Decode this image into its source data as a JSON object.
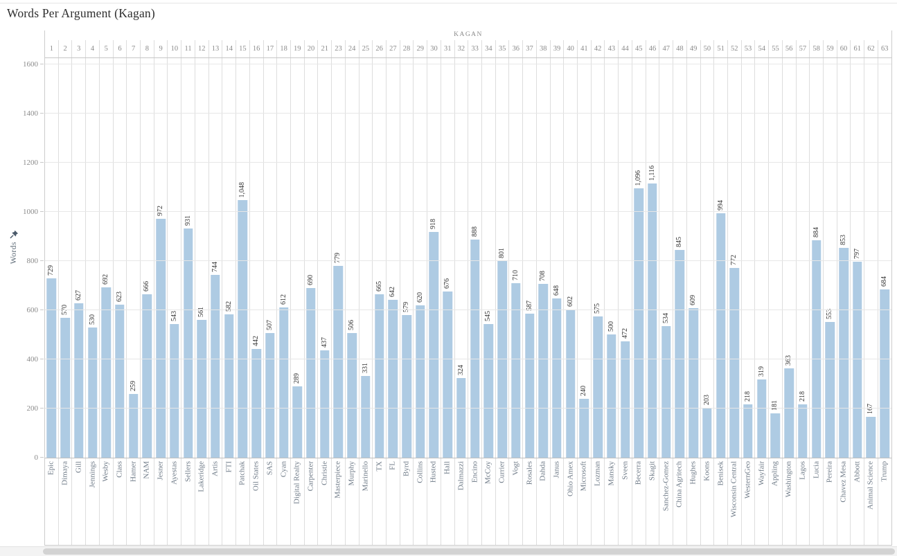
{
  "header": {
    "title": "Words Per Argument (Kagan)"
  },
  "colors": {
    "bar": "#aecbe3",
    "value_label": "#333333",
    "category_label": "#6e7a87",
    "axis_text": "#8a8a8a",
    "gridline": "#e7e7e7",
    "column_divider": "#dddddd",
    "pin_icon": "#4a5a6a"
  },
  "icons": {
    "pin": "pushpin-icon"
  },
  "chart_data": {
    "type": "bar",
    "title": "Words Per Argument (Kagan)",
    "group_label": "KAGAN",
    "ylabel": "Words",
    "ylim": [
      0,
      1600
    ],
    "yticks": [
      0,
      200,
      400,
      600,
      800,
      1000,
      1200,
      1400,
      1600
    ],
    "grid": "horizontal",
    "legend": "none",
    "bar_orientation": "vertical",
    "value_labels": "rotated-90-above-bars",
    "category_labels": "rotated-90-below-axis",
    "column_numbers_skip": [
      22
    ],
    "columns": [
      {
        "n": 1,
        "label": "Epic",
        "value": 729
      },
      {
        "n": 2,
        "label": "Dimaya",
        "value": 570
      },
      {
        "n": 3,
        "label": "Gill",
        "value": 627
      },
      {
        "n": 4,
        "label": "Jennings",
        "value": 530
      },
      {
        "n": 5,
        "label": "Wesby",
        "value": 692
      },
      {
        "n": 6,
        "label": "Class",
        "value": 623
      },
      {
        "n": 7,
        "label": "Hamer",
        "value": 259
      },
      {
        "n": 8,
        "label": "NAM",
        "value": 666
      },
      {
        "n": 9,
        "label": "Jesner",
        "value": 972
      },
      {
        "n": 10,
        "label": "Ayestas",
        "value": 543
      },
      {
        "n": 11,
        "label": "Sellers",
        "value": 931
      },
      {
        "n": 12,
        "label": "Lakeridge",
        "value": 561
      },
      {
        "n": 13,
        "label": "Artis",
        "value": 744
      },
      {
        "n": 14,
        "label": "FTI",
        "value": 582
      },
      {
        "n": 15,
        "label": "Patchak",
        "value": 1048
      },
      {
        "n": 16,
        "label": "Oil States",
        "value": 442
      },
      {
        "n": 17,
        "label": "SAS",
        "value": 507
      },
      {
        "n": 18,
        "label": "Cyan",
        "value": 612
      },
      {
        "n": 19,
        "label": "Digital Realty",
        "value": 289
      },
      {
        "n": 20,
        "label": "Carpenter",
        "value": 690
      },
      {
        "n": 21,
        "label": "Christie",
        "value": 437
      },
      {
        "n": 23,
        "label": "Masterpiece",
        "value": 779
      },
      {
        "n": 24,
        "label": "Murphy",
        "value": 506
      },
      {
        "n": 25,
        "label": "Marinello",
        "value": 331
      },
      {
        "n": 26,
        "label": "TX",
        "value": 665
      },
      {
        "n": 27,
        "label": "FL",
        "value": 642
      },
      {
        "n": 28,
        "label": "Byrd",
        "value": 579
      },
      {
        "n": 29,
        "label": "Collins",
        "value": 620
      },
      {
        "n": 30,
        "label": "Husted",
        "value": 918
      },
      {
        "n": 31,
        "label": "Hall",
        "value": 676
      },
      {
        "n": 32,
        "label": "Dalmazzi",
        "value": 324
      },
      {
        "n": 33,
        "label": "Encino",
        "value": 888
      },
      {
        "n": 34,
        "label": "McCoy",
        "value": 545
      },
      {
        "n": 35,
        "label": "Currier",
        "value": 801
      },
      {
        "n": 36,
        "label": "Vogt",
        "value": 710
      },
      {
        "n": 37,
        "label": "Rosales",
        "value": 587
      },
      {
        "n": 38,
        "label": "Dahda",
        "value": 708
      },
      {
        "n": 39,
        "label": "Janus",
        "value": 648
      },
      {
        "n": 40,
        "label": "Ohio Amex",
        "value": 602
      },
      {
        "n": 41,
        "label": "Microsoft",
        "value": 240
      },
      {
        "n": 42,
        "label": "Lozman",
        "value": 575
      },
      {
        "n": 43,
        "label": "Mansky",
        "value": 500
      },
      {
        "n": 44,
        "label": "Sveen",
        "value": 472
      },
      {
        "n": 45,
        "label": "Becerra",
        "value": 1096
      },
      {
        "n": 46,
        "label": "Skagit",
        "value": 1116
      },
      {
        "n": 47,
        "label": "Sanchez-Gomez",
        "value": 534
      },
      {
        "n": 48,
        "label": "China Agritech",
        "value": 845
      },
      {
        "n": 49,
        "label": "Hughes",
        "value": 609
      },
      {
        "n": 50,
        "label": "Koons",
        "value": 203
      },
      {
        "n": 51,
        "label": "Benisek",
        "value": 994
      },
      {
        "n": 52,
        "label": "Wisconsin Central",
        "value": 772
      },
      {
        "n": 53,
        "label": "WesternGeo",
        "value": 218
      },
      {
        "n": 54,
        "label": "Wayfair",
        "value": 319
      },
      {
        "n": 55,
        "label": "Appling",
        "value": 181
      },
      {
        "n": 56,
        "label": "Washington",
        "value": 363
      },
      {
        "n": 57,
        "label": "Lagos",
        "value": 218
      },
      {
        "n": 58,
        "label": "Lucia",
        "value": 884
      },
      {
        "n": 59,
        "label": "Pereira",
        "value": 553
      },
      {
        "n": 60,
        "label": "Chavez Mesa",
        "value": 853
      },
      {
        "n": 61,
        "label": "Abbott",
        "value": 797
      },
      {
        "n": 62,
        "label": "Animal Science",
        "value": 167
      },
      {
        "n": 63,
        "label": "Trump",
        "value": 684
      }
    ]
  }
}
